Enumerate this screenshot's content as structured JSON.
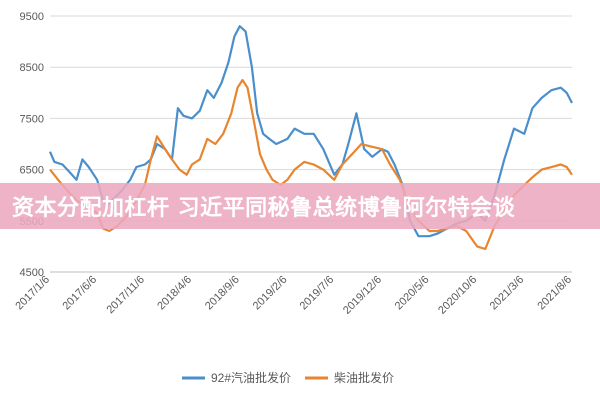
{
  "banner": {
    "text": "资本分配加杠杆 习近平同秘鲁总统博鲁阿尔特会谈",
    "color": "#eca8be"
  },
  "chart_data": {
    "type": "line",
    "title": "",
    "xlabel": "",
    "ylabel": "",
    "ylim": [
      4500,
      9500
    ],
    "yticks": [
      4500,
      5500,
      6500,
      7500,
      8500,
      9500
    ],
    "xlim": [
      "2017-01-06",
      "2021-08-06"
    ],
    "xticks": [
      "2017/1/6",
      "2017/6/6",
      "2017/11/6",
      "2018/4/6",
      "2018/9/6",
      "2019/2/6",
      "2019/7/6",
      "2019/12/6",
      "2020/5/6",
      "2020/10/6",
      "2021/3/6",
      "2021/8/6"
    ],
    "grid": "horizontal",
    "legend": "bottom",
    "series": [
      {
        "name": "92#汽油批发价",
        "color": "#4a8fcb",
        "points": [
          [
            "2017-01-06",
            6850
          ],
          [
            "2017-01-20",
            6650
          ],
          [
            "2017-02-15",
            6600
          ],
          [
            "2017-03-10",
            6450
          ],
          [
            "2017-04-01",
            6300
          ],
          [
            "2017-04-20",
            6700
          ],
          [
            "2017-05-10",
            6550
          ],
          [
            "2017-06-06",
            6300
          ],
          [
            "2017-06-25",
            5900
          ],
          [
            "2017-07-10",
            5800
          ],
          [
            "2017-08-01",
            5950
          ],
          [
            "2017-08-25",
            6100
          ],
          [
            "2017-09-20",
            6300
          ],
          [
            "2017-10-10",
            6550
          ],
          [
            "2017-11-06",
            6600
          ],
          [
            "2017-11-25",
            6700
          ],
          [
            "2017-12-15",
            7000
          ],
          [
            "2018-01-10",
            6900
          ],
          [
            "2018-02-01",
            6700
          ],
          [
            "2018-02-20",
            7700
          ],
          [
            "2018-03-10",
            7550
          ],
          [
            "2018-04-06",
            7500
          ],
          [
            "2018-05-01",
            7650
          ],
          [
            "2018-05-25",
            8050
          ],
          [
            "2018-06-15",
            7900
          ],
          [
            "2018-07-10",
            8200
          ],
          [
            "2018-08-01",
            8600
          ],
          [
            "2018-08-20",
            9100
          ],
          [
            "2018-09-06",
            9300
          ],
          [
            "2018-09-25",
            9200
          ],
          [
            "2018-10-15",
            8500
          ],
          [
            "2018-11-01",
            7600
          ],
          [
            "2018-11-20",
            7200
          ],
          [
            "2018-12-10",
            7100
          ],
          [
            "2019-01-01",
            7000
          ],
          [
            "2019-02-06",
            7100
          ],
          [
            "2019-03-01",
            7300
          ],
          [
            "2019-04-01",
            7200
          ],
          [
            "2019-05-01",
            7200
          ],
          [
            "2019-06-01",
            6900
          ],
          [
            "2019-07-06",
            6400
          ],
          [
            "2019-08-01",
            6600
          ],
          [
            "2019-08-20",
            7000
          ],
          [
            "2019-09-15",
            7600
          ],
          [
            "2019-10-10",
            6900
          ],
          [
            "2019-11-05",
            6750
          ],
          [
            "2019-12-06",
            6900
          ],
          [
            "2019-12-25",
            6850
          ],
          [
            "2020-01-15",
            6600
          ],
          [
            "2020-02-10",
            6200
          ],
          [
            "2020-03-05",
            5500
          ],
          [
            "2020-04-01",
            5200
          ],
          [
            "2020-05-06",
            5200
          ],
          [
            "2020-06-01",
            5250
          ],
          [
            "2020-07-01",
            5350
          ],
          [
            "2020-08-01",
            5450
          ],
          [
            "2020-09-01",
            5500
          ],
          [
            "2020-10-06",
            5650
          ],
          [
            "2020-11-01",
            5500
          ],
          [
            "2020-12-01",
            6000
          ],
          [
            "2021-01-01",
            6700
          ],
          [
            "2021-02-01",
            7300
          ],
          [
            "2021-03-06",
            7200
          ],
          [
            "2021-04-01",
            7700
          ],
          [
            "2021-05-01",
            7900
          ],
          [
            "2021-06-01",
            8050
          ],
          [
            "2021-07-01",
            8100
          ],
          [
            "2021-07-20",
            8000
          ],
          [
            "2021-08-06",
            7800
          ]
        ]
      },
      {
        "name": "柴油批发价",
        "color": "#e8852f",
        "points": [
          [
            "2017-01-06",
            6500
          ],
          [
            "2017-02-01",
            6300
          ],
          [
            "2017-03-01",
            6100
          ],
          [
            "2017-04-01",
            5900
          ],
          [
            "2017-05-01",
            5800
          ],
          [
            "2017-06-06",
            5650
          ],
          [
            "2017-06-25",
            5350
          ],
          [
            "2017-07-15",
            5300
          ],
          [
            "2017-08-10",
            5400
          ],
          [
            "2017-09-10",
            5600
          ],
          [
            "2017-10-10",
            5900
          ],
          [
            "2017-11-06",
            6200
          ],
          [
            "2017-11-25",
            6700
          ],
          [
            "2017-12-15",
            7150
          ],
          [
            "2018-01-10",
            6900
          ],
          [
            "2018-02-01",
            6700
          ],
          [
            "2018-02-25",
            6500
          ],
          [
            "2018-03-20",
            6400
          ],
          [
            "2018-04-06",
            6600
          ],
          [
            "2018-05-01",
            6700
          ],
          [
            "2018-05-25",
            7100
          ],
          [
            "2018-06-20",
            7000
          ],
          [
            "2018-07-15",
            7200
          ],
          [
            "2018-08-10",
            7600
          ],
          [
            "2018-08-30",
            8100
          ],
          [
            "2018-09-15",
            8250
          ],
          [
            "2018-10-01",
            8100
          ],
          [
            "2018-10-20",
            7500
          ],
          [
            "2018-11-10",
            6800
          ],
          [
            "2018-12-01",
            6500
          ],
          [
            "2018-12-20",
            6300
          ],
          [
            "2019-01-15",
            6200
          ],
          [
            "2019-02-06",
            6300
          ],
          [
            "2019-03-01",
            6500
          ],
          [
            "2019-04-01",
            6650
          ],
          [
            "2019-05-01",
            6600
          ],
          [
            "2019-06-01",
            6500
          ],
          [
            "2019-07-06",
            6300
          ],
          [
            "2019-08-01",
            6600
          ],
          [
            "2019-09-01",
            6800
          ],
          [
            "2019-10-01",
            7000
          ],
          [
            "2019-11-01",
            6950
          ],
          [
            "2019-12-06",
            6900
          ],
          [
            "2020-01-01",
            6600
          ],
          [
            "2020-02-01",
            6300
          ],
          [
            "2020-03-01",
            5800
          ],
          [
            "2020-04-01",
            5500
          ],
          [
            "2020-05-06",
            5300
          ],
          [
            "2020-06-01",
            5300
          ],
          [
            "2020-07-01",
            5350
          ],
          [
            "2020-08-01",
            5400
          ],
          [
            "2020-09-01",
            5300
          ],
          [
            "2020-10-06",
            5000
          ],
          [
            "2020-11-01",
            4950
          ],
          [
            "2020-12-01",
            5400
          ],
          [
            "2021-01-01",
            5700
          ],
          [
            "2021-02-01",
            6000
          ],
          [
            "2021-03-06",
            6200
          ],
          [
            "2021-04-01",
            6350
          ],
          [
            "2021-05-01",
            6500
          ],
          [
            "2021-06-01",
            6550
          ],
          [
            "2021-07-01",
            6600
          ],
          [
            "2021-07-20",
            6550
          ],
          [
            "2021-08-06",
            6400
          ]
        ]
      }
    ]
  }
}
